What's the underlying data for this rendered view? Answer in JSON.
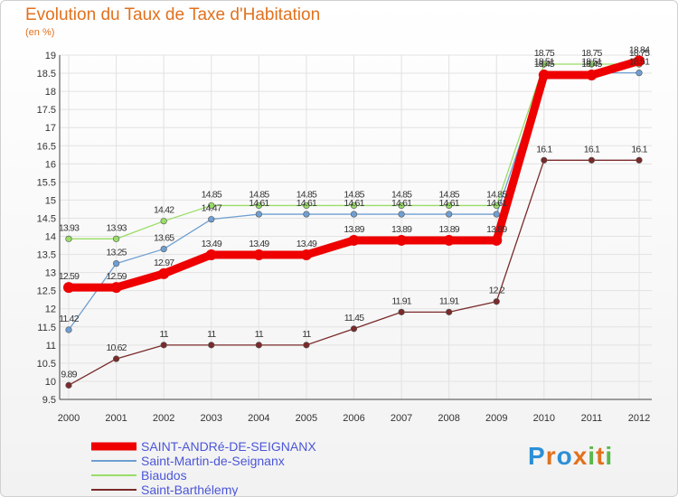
{
  "chart_data": {
    "type": "line",
    "title": "Evolution du Taux de Taxe d'Habitation",
    "subtitle": "(en %)",
    "xlabel": "",
    "ylabel": "",
    "ylim": [
      9.5,
      19
    ],
    "y_ticks": [
      "9.5",
      "10",
      "10.5",
      "11",
      "11.5",
      "12",
      "12.5",
      "13",
      "13.5",
      "14",
      "14.5",
      "15",
      "15.5",
      "16",
      "16.5",
      "17",
      "17.5",
      "18",
      "18.5",
      "19"
    ],
    "categories": [
      "2000",
      "2001",
      "2002",
      "2003",
      "2004",
      "2005",
      "2006",
      "2007",
      "2008",
      "2009",
      "2010",
      "2011",
      "2012"
    ],
    "series": [
      {
        "name": "SAINT-ANDRé-DE-SEIGNANX",
        "color": "#ee0000",
        "values": [
          12.59,
          12.59,
          12.97,
          13.49,
          13.49,
          13.49,
          13.89,
          13.89,
          13.89,
          13.89,
          18.45,
          18.45,
          18.84
        ],
        "labels": [
          "12.59",
          "12.59",
          "12.97",
          "13.49",
          "13.49",
          "13.49",
          "13.89",
          "13.89",
          "13.89",
          "13.89",
          "18.45",
          "18.45",
          "18.84"
        ]
      },
      {
        "name": "Saint-Martin-de-Seignanx",
        "color": "#6f9fd2",
        "values": [
          11.42,
          13.25,
          13.65,
          14.47,
          14.61,
          14.61,
          14.61,
          14.61,
          14.61,
          14.61,
          18.51,
          18.51,
          18.51
        ],
        "labels": [
          "11.42",
          "13.25",
          "13.65",
          "14.47",
          "14.61",
          "14.61",
          "14.61",
          "14.61",
          "14.61",
          "14.61",
          "18.51",
          "18.51",
          "18.51"
        ]
      },
      {
        "name": "Biaudos",
        "color": "#99dd66",
        "values": [
          13.93,
          13.93,
          14.42,
          14.85,
          14.85,
          14.85,
          14.85,
          14.85,
          14.85,
          14.85,
          18.75,
          18.75,
          18.75
        ],
        "labels": [
          "13.93",
          "13.93",
          "14.42",
          "14.85",
          "14.85",
          "14.85",
          "14.85",
          "14.85",
          "14.85",
          "14.85",
          "18.75",
          "18.75",
          "18.75"
        ]
      },
      {
        "name": "Saint-Barthélemy",
        "color": "#7a2a2a",
        "values": [
          9.89,
          10.62,
          11,
          11,
          11,
          11,
          11.45,
          11.91,
          11.91,
          12.2,
          16.1,
          16.1,
          16.1
        ],
        "labels": [
          "9.89",
          "10.62",
          "11",
          "11",
          "11",
          "11",
          "11.45",
          "11.91",
          "11.91",
          "12.2",
          "16.1",
          "16.1",
          "16.1"
        ]
      }
    ]
  },
  "logo": {
    "letters": [
      "P",
      "r",
      "o",
      "x",
      "i",
      "t",
      "i"
    ],
    "colors": [
      "#2b8fd6",
      "#e2711d",
      "#2b8fd6",
      "#e2711d",
      "#59b84a",
      "#e2711d",
      "#59b84a"
    ]
  }
}
